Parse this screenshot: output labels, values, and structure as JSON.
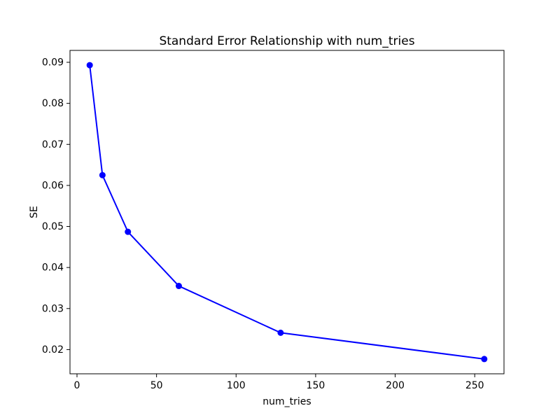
{
  "chart_data": {
    "type": "line",
    "title": "Standard Error Relationship with num_tries",
    "xlabel": "num_tries",
    "ylabel": "SE",
    "series": [
      {
        "name": "SE",
        "x": [
          8,
          16,
          32,
          64,
          128,
          256
        ],
        "y": [
          0.0893,
          0.0625,
          0.0487,
          0.0355,
          0.0241,
          0.0177
        ],
        "line_color": "#0000ff",
        "marker": "circle"
      }
    ],
    "xlim": [
      -4.4,
      268.4
    ],
    "ylim": [
      0.0141,
      0.0929
    ],
    "xticks": [
      0,
      50,
      100,
      150,
      200,
      250
    ],
    "yticks": [
      0.02,
      0.03,
      0.04,
      0.05,
      0.06,
      0.07,
      0.08,
      0.09
    ],
    "ytick_decimals": 2,
    "grid": false,
    "legend_position": "none",
    "frame_color": "#000000",
    "background_color": "#ffffff"
  }
}
